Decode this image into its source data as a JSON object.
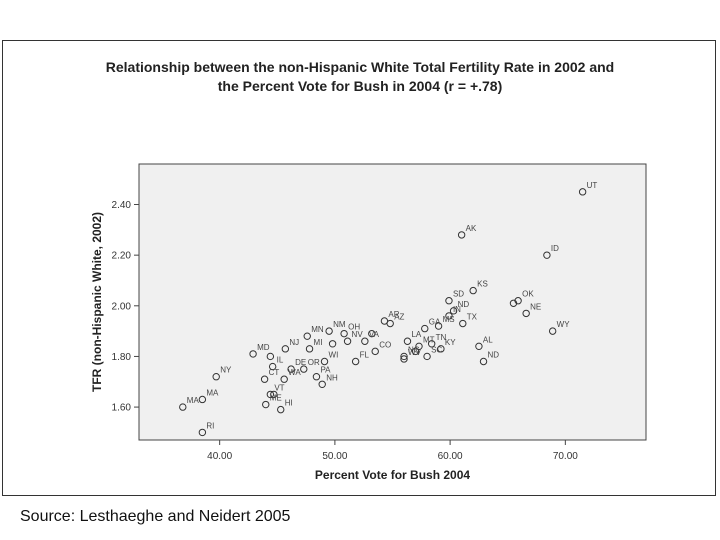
{
  "chart_data": {
    "type": "scatter",
    "title_line1": "Relationship between the non-Hispanic White Total Fertility Rate in 2002 and",
    "title_line2": "the Percent Vote for Bush in 2004  (r = +.78)",
    "xlabel": "Percent Vote for Bush 2004",
    "ylabel": "TFR (non-Hispanic White, 2002)",
    "xlim": [
      33,
      77
    ],
    "ylim": [
      1.47,
      2.56
    ],
    "xticks": [
      40,
      50,
      60,
      70
    ],
    "xtick_labels": [
      "40.00",
      "50.00",
      "60.00",
      "70.00"
    ],
    "yticks": [
      1.6,
      1.8,
      2.0,
      2.2,
      2.4
    ],
    "ytick_labels": [
      "1.60",
      "1.80",
      "2.00",
      "2.20",
      "2.40"
    ],
    "grid": false,
    "plot_background": "#f0f0f0",
    "marker_color": "#333333",
    "points": [
      {
        "x": 71.5,
        "y": 2.45,
        "label": "UT"
      },
      {
        "x": 61.0,
        "y": 2.28,
        "label": "AK"
      },
      {
        "x": 68.4,
        "y": 2.2,
        "label": "ID"
      },
      {
        "x": 62.0,
        "y": 2.06,
        "label": "KS"
      },
      {
        "x": 59.9,
        "y": 2.02,
        "label": "SD"
      },
      {
        "x": 65.9,
        "y": 2.02,
        "label": "OK"
      },
      {
        "x": 65.5,
        "y": 2.01,
        "label": ""
      },
      {
        "x": 60.3,
        "y": 1.98,
        "label": "ND"
      },
      {
        "x": 66.6,
        "y": 1.97,
        "label": "NE"
      },
      {
        "x": 59.9,
        "y": 1.96,
        "label": "IN"
      },
      {
        "x": 61.1,
        "y": 1.93,
        "label": "TX"
      },
      {
        "x": 54.3,
        "y": 1.94,
        "label": "AR"
      },
      {
        "x": 54.8,
        "y": 1.93,
        "label": "AZ"
      },
      {
        "x": 59.0,
        "y": 1.92,
        "label": "MS"
      },
      {
        "x": 57.8,
        "y": 1.91,
        "label": "GA"
      },
      {
        "x": 49.5,
        "y": 1.9,
        "label": "NM"
      },
      {
        "x": 50.8,
        "y": 1.89,
        "label": "OH"
      },
      {
        "x": 53.2,
        "y": 1.89,
        "label": ""
      },
      {
        "x": 68.9,
        "y": 1.9,
        "label": "WY"
      },
      {
        "x": 47.6,
        "y": 1.88,
        "label": "MN"
      },
      {
        "x": 51.1,
        "y": 1.86,
        "label": "NV"
      },
      {
        "x": 52.6,
        "y": 1.86,
        "label": "VA"
      },
      {
        "x": 56.3,
        "y": 1.86,
        "label": "LA"
      },
      {
        "x": 58.4,
        "y": 1.85,
        "label": "TN"
      },
      {
        "x": 62.5,
        "y": 1.84,
        "label": "AL"
      },
      {
        "x": 45.7,
        "y": 1.83,
        "label": "NJ"
      },
      {
        "x": 47.8,
        "y": 1.83,
        "label": "MI"
      },
      {
        "x": 49.8,
        "y": 1.85,
        "label": ""
      },
      {
        "x": 57.3,
        "y": 1.84,
        "label": "MT"
      },
      {
        "x": 59.2,
        "y": 1.83,
        "label": "KY"
      },
      {
        "x": 53.5,
        "y": 1.82,
        "label": "CO"
      },
      {
        "x": 56.0,
        "y": 1.8,
        "label": "NC"
      },
      {
        "x": 57.0,
        "y": 1.82,
        "label": ""
      },
      {
        "x": 42.9,
        "y": 1.81,
        "label": "MD"
      },
      {
        "x": 44.4,
        "y": 1.8,
        "label": ""
      },
      {
        "x": 58.0,
        "y": 1.8,
        "label": "SC"
      },
      {
        "x": 62.9,
        "y": 1.78,
        "label": "ND"
      },
      {
        "x": 49.1,
        "y": 1.78,
        "label": "WI"
      },
      {
        "x": 51.8,
        "y": 1.78,
        "label": "FL"
      },
      {
        "x": 56.0,
        "y": 1.79,
        "label": "WV"
      },
      {
        "x": 44.6,
        "y": 1.76,
        "label": "IL"
      },
      {
        "x": 46.2,
        "y": 1.75,
        "label": "DE"
      },
      {
        "x": 47.3,
        "y": 1.75,
        "label": "OR"
      },
      {
        "x": 39.7,
        "y": 1.72,
        "label": "NY"
      },
      {
        "x": 43.9,
        "y": 1.71,
        "label": "CT"
      },
      {
        "x": 45.6,
        "y": 1.71,
        "label": "WA"
      },
      {
        "x": 48.4,
        "y": 1.72,
        "label": "PA"
      },
      {
        "x": 48.9,
        "y": 1.69,
        "label": "NH"
      },
      {
        "x": 44.4,
        "y": 1.65,
        "label": "VT"
      },
      {
        "x": 44.7,
        "y": 1.65,
        "label": ""
      },
      {
        "x": 38.5,
        "y": 1.63,
        "label": "MA"
      },
      {
        "x": 36.8,
        "y": 1.6,
        "label": "MA"
      },
      {
        "x": 45.3,
        "y": 1.59,
        "label": "HI"
      },
      {
        "x": 44.0,
        "y": 1.61,
        "label": "ME"
      },
      {
        "x": 38.5,
        "y": 1.5,
        "label": "RI"
      }
    ]
  },
  "footer": {
    "source": "Source: Lesthaeghe and Neidert 2005"
  }
}
